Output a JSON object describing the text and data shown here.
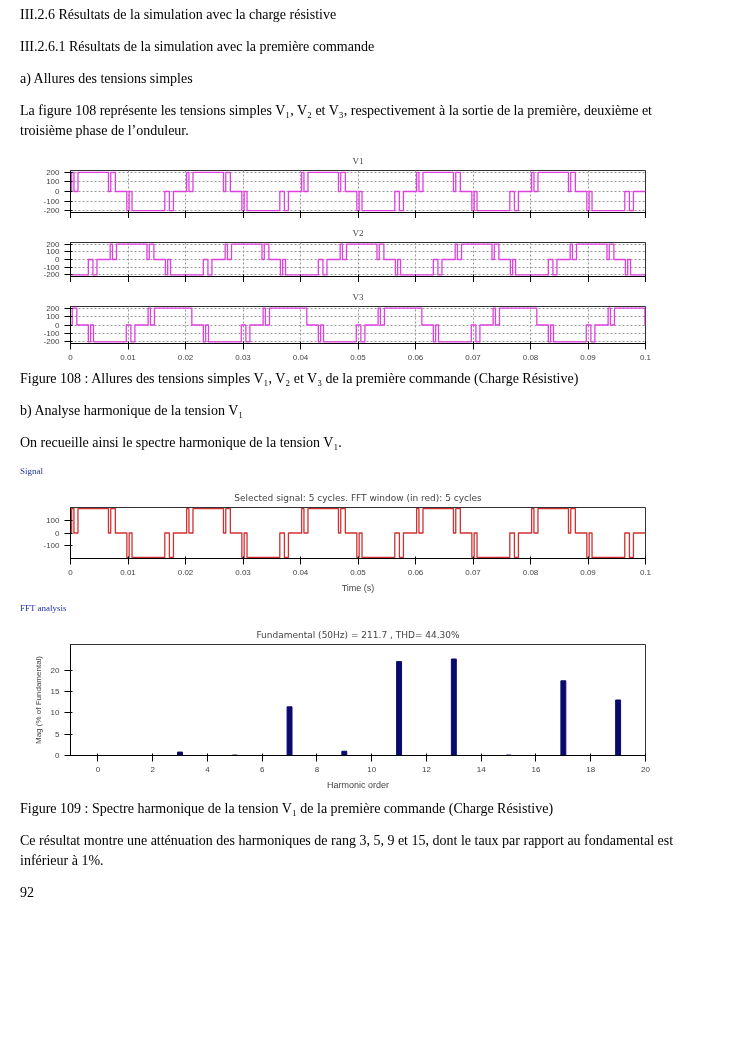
{
  "chart_data": [
    {
      "type": "step",
      "title": "V1",
      "annotations": [
        "III.2.6    Résultats de la simulation avec la charge résistive",
        "III.2.6.1   Résultats de la simulation avec la première commande",
        "a)  Allures des tensions simples",
        "La figure 108 représente les tensions simples V₁, V₂ et V₃, respectivement à la sortie de la première, deuxième et troisième phase de l’onduleur."
      ],
      "x": [
        0,
        0.0002,
        0.0006,
        0.0013,
        0.0066,
        0.007,
        0.0078,
        0.0098,
        0.0102,
        0.0107,
        0.0164,
        0.0172,
        0.0179,
        0.0202,
        0.0206,
        0.0213,
        0.0266,
        0.027,
        0.0278,
        0.0298,
        0.0302,
        0.0307,
        0.0364,
        0.0372,
        0.0379,
        0.0402,
        0.0406,
        0.0413,
        0.0466,
        0.047,
        0.0478,
        0.0498,
        0.0502,
        0.0507,
        0.0564,
        0.0572,
        0.0579,
        0.0602,
        0.0606,
        0.0613,
        0.0666,
        0.067,
        0.0678,
        0.0698,
        0.0702,
        0.0707,
        0.0764,
        0.0772,
        0.0779,
        0.0802,
        0.0806,
        0.0813,
        0.0866,
        0.087,
        0.0878,
        0.0898,
        0.0902,
        0.0907,
        0.0964,
        0.0972,
        0.0979,
        0.1
      ],
      "series": [
        {
          "color": "#e040e0",
          "values": [
            0,
            200,
            0,
            200,
            0,
            200,
            0,
            -200,
            0,
            -200,
            0,
            -200,
            0,
            200,
            0,
            200,
            0,
            200,
            0,
            -200,
            0,
            -200,
            0,
            -200,
            0,
            200,
            0,
            200,
            0,
            200,
            0,
            -200,
            0,
            -200,
            0,
            -200,
            0,
            200,
            0,
            200,
            0,
            200,
            0,
            -200,
            0,
            -200,
            0,
            -200,
            0,
            200,
            0,
            200,
            0,
            200,
            0,
            -200,
            0,
            -200,
            0,
            -200,
            0,
            0
          ]
        }
      ],
      "xlim": [
        0,
        0.1
      ],
      "ylim": [
        -220,
        220
      ],
      "yticks": [
        -200,
        -100,
        0,
        100,
        200
      ],
      "xticks": [
        0,
        0.01,
        0.02,
        0.03,
        0.04,
        0.05,
        0.06,
        0.07,
        0.08,
        0.09,
        0.1
      ],
      "grid": true,
      "tick_labels": "y"
    },
    {
      "type": "step",
      "title": "V2",
      "x": [
        0,
        0.0031,
        0.0039,
        0.0046,
        0.0069,
        0.0073,
        0.008,
        0.0133,
        0.0137,
        0.0145,
        0.0165,
        0.0169,
        0.0174,
        0.0231,
        0.0239,
        0.0246,
        0.0269,
        0.0273,
        0.028,
        0.0333,
        0.0337,
        0.0345,
        0.0365,
        0.0369,
        0.0374,
        0.0431,
        0.0439,
        0.0446,
        0.0469,
        0.0473,
        0.048,
        0.0533,
        0.0537,
        0.0545,
        0.0565,
        0.0569,
        0.0574,
        0.0631,
        0.0639,
        0.0646,
        0.0669,
        0.0673,
        0.068,
        0.0733,
        0.0737,
        0.0745,
        0.0765,
        0.0769,
        0.0774,
        0.0831,
        0.0839,
        0.0846,
        0.0869,
        0.0873,
        0.088,
        0.0933,
        0.0937,
        0.0945,
        0.0965,
        0.0969,
        0.0974,
        0.1
      ],
      "series": [
        {
          "color": "#e040e0",
          "values": [
            -200,
            0,
            -200,
            0,
            200,
            0,
            200,
            0,
            200,
            0,
            -200,
            0,
            -200,
            0,
            -200,
            0,
            200,
            0,
            200,
            0,
            200,
            0,
            -200,
            0,
            -200,
            0,
            -200,
            0,
            200,
            0,
            200,
            0,
            200,
            0,
            -200,
            0,
            -200,
            0,
            -200,
            0,
            200,
            0,
            200,
            0,
            200,
            0,
            -200,
            0,
            -200,
            0,
            -200,
            0,
            200,
            0,
            200,
            0,
            200,
            0,
            -200,
            0,
            -200,
            -200
          ]
        }
      ],
      "xlim": [
        0,
        0.1
      ],
      "ylim": [
        -220,
        220
      ],
      "yticks": [
        -200,
        -100,
        0,
        100,
        200
      ],
      "xticks": [
        0,
        0.01,
        0.02,
        0.03,
        0.04,
        0.05,
        0.06,
        0.07,
        0.08,
        0.09,
        0.1
      ],
      "grid": true,
      "tick_labels": "y"
    },
    {
      "type": "step",
      "title": "V3",
      "x": [
        0,
        0.0003,
        0.0011,
        0.0031,
        0.0035,
        0.004,
        0.0097,
        0.0105,
        0.0112,
        0.0135,
        0.0139,
        0.0146,
        0.0203,
        0.0211,
        0.0231,
        0.0235,
        0.024,
        0.0297,
        0.0305,
        0.0312,
        0.0335,
        0.0339,
        0.0346,
        0.0403,
        0.0411,
        0.0431,
        0.0435,
        0.044,
        0.0497,
        0.0505,
        0.0512,
        0.0535,
        0.0539,
        0.0546,
        0.0603,
        0.0611,
        0.0631,
        0.0635,
        0.064,
        0.0697,
        0.0705,
        0.0712,
        0.0735,
        0.0739,
        0.0746,
        0.0803,
        0.0811,
        0.0831,
        0.0835,
        0.084,
        0.0897,
        0.0905,
        0.0912,
        0.0935,
        0.0939,
        0.0946,
        0.0999,
        0.1
      ],
      "series": [
        {
          "color": "#e040e0",
          "values": [
            0,
            200,
            0,
            -200,
            0,
            -200,
            0,
            -200,
            0,
            200,
            0,
            200,
            200,
            0,
            -200,
            0,
            -200,
            0,
            -200,
            0,
            200,
            0,
            200,
            200,
            0,
            -200,
            0,
            -200,
            0,
            -200,
            0,
            200,
            0,
            200,
            200,
            0,
            -200,
            0,
            -200,
            0,
            -200,
            0,
            200,
            0,
            200,
            200,
            0,
            -200,
            0,
            -200,
            0,
            -200,
            0,
            200,
            0,
            200,
            0,
            0
          ]
        }
      ],
      "xlim": [
        0,
        0.1
      ],
      "ylim": [
        -220,
        220
      ],
      "yticks": [
        -200,
        -100,
        0,
        100,
        200
      ],
      "xticks": [
        0,
        0.01,
        0.02,
        0.03,
        0.04,
        0.05,
        0.06,
        0.07,
        0.08,
        0.09,
        0.1
      ],
      "grid": true
    },
    {
      "type": "step",
      "title": "Selected signal: 5 cycles. FFT window (in red): 5 cycles",
      "xlabel": "Time (s)",
      "annotations": [
        "Figure 108 : Allures des tensions simples V₁, V₂ et V₃ de la première commande (Charge Résistive)",
        "b)  Analyse  harmonique de la tension V₁",
        "On recueille ainsi le spectre harmonique de la tension V₁.",
        "Signal"
      ],
      "x": [
        0,
        0.0002,
        0.0006,
        0.0013,
        0.0066,
        0.007,
        0.0078,
        0.0098,
        0.0102,
        0.0107,
        0.0164,
        0.0172,
        0.0179,
        0.0202,
        0.0206,
        0.0213,
        0.0266,
        0.027,
        0.0278,
        0.0298,
        0.0302,
        0.0307,
        0.0364,
        0.0372,
        0.0379,
        0.0402,
        0.0406,
        0.0413,
        0.0466,
        0.047,
        0.0478,
        0.0498,
        0.0502,
        0.0507,
        0.0564,
        0.0572,
        0.0579,
        0.0602,
        0.0606,
        0.0613,
        0.0666,
        0.067,
        0.0678,
        0.0698,
        0.0702,
        0.0707,
        0.0764,
        0.0772,
        0.0779,
        0.0802,
        0.0806,
        0.0813,
        0.0866,
        0.087,
        0.0878,
        0.0898,
        0.0902,
        0.0907,
        0.0964,
        0.0972,
        0.0979,
        0.1
      ],
      "series": [
        {
          "color": "#d03030",
          "values": [
            0,
            200,
            0,
            200,
            0,
            200,
            0,
            -200,
            0,
            -200,
            0,
            -200,
            0,
            200,
            0,
            200,
            0,
            200,
            0,
            -200,
            0,
            -200,
            0,
            -200,
            0,
            200,
            0,
            200,
            0,
            200,
            0,
            -200,
            0,
            -200,
            0,
            -200,
            0,
            200,
            0,
            200,
            0,
            200,
            0,
            -200,
            0,
            -200,
            0,
            -200,
            0,
            200,
            0,
            200,
            0,
            200,
            0,
            -200,
            0,
            -200,
            0,
            -200,
            0,
            0
          ]
        }
      ],
      "xlim": [
        0,
        0.1
      ],
      "ylim": [
        -210,
        210
      ],
      "yticks": [
        -100,
        0,
        100
      ],
      "xticks": [
        0,
        0.01,
        0.02,
        0.03,
        0.04,
        0.05,
        0.06,
        0.07,
        0.08,
        0.09,
        0.1
      ]
    },
    {
      "type": "bar",
      "title": "Fundamental (50Hz) = 211.7 , THD= 44.30%",
      "xlabel": "Harmonic order",
      "ylabel": "Mag (% of Fundamental)",
      "annotations": [
        "FFT analysis",
        "Figure 109 : Spectre harmonique de la tension V₁ de la première commande (Charge Résistive)",
        "Ce résultat montre une atténuation des harmoniques de rang 3, 5, 9 et 15, dont le taux par rapport au fondamental est inférieur à 1%.",
        "92"
      ],
      "x": [
        3,
        5,
        7,
        9,
        11,
        13,
        15,
        17,
        19
      ],
      "series": [
        {
          "color": "#0a0a6e",
          "values": [
            0.8,
            0.1,
            11.4,
            1.0,
            22.0,
            22.6,
            0.1,
            17.5,
            13.0
          ]
        }
      ],
      "xlim": [
        -1,
        20
      ],
      "ylim": [
        0,
        26
      ],
      "xticks": [
        0,
        2,
        4,
        6,
        8,
        10,
        12,
        14,
        16,
        18,
        20
      ],
      "yticks": [
        0,
        5,
        10,
        15,
        20
      ]
    }
  ]
}
